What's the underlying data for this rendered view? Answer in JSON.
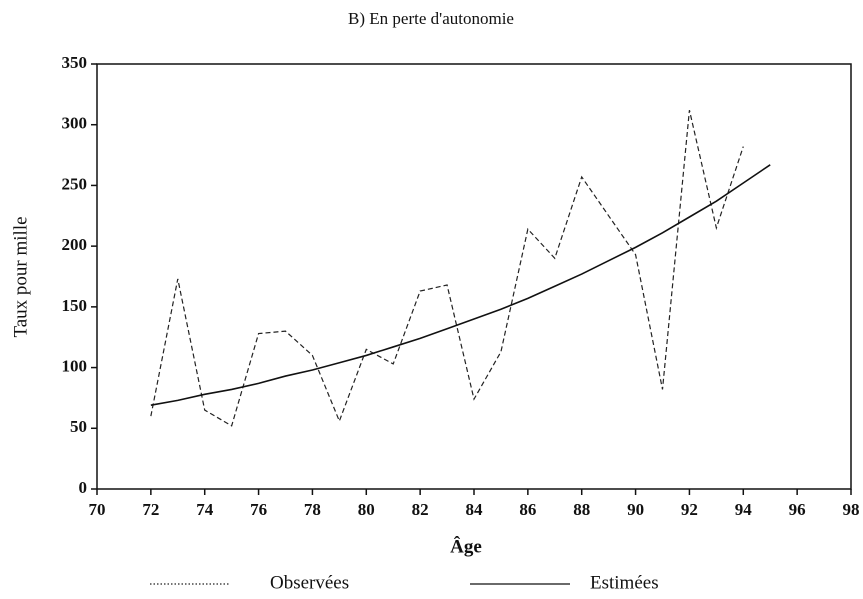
{
  "chart_data": {
    "type": "line",
    "title": "B) En perte d'autonomie",
    "xlabel": "Âge",
    "ylabel": "Taux pour mille",
    "xlim": [
      70,
      98
    ],
    "xticks": [
      70,
      72,
      74,
      76,
      78,
      80,
      82,
      84,
      86,
      88,
      90,
      92,
      94,
      96,
      98
    ],
    "ylim": [
      0,
      350
    ],
    "yticks": [
      0,
      50,
      100,
      150,
      200,
      250,
      300,
      350
    ],
    "series": [
      {
        "name": "Observées",
        "color": "#222222",
        "dash": "dashed",
        "x": [
          72,
          73,
          74,
          75,
          76,
          77,
          78,
          79,
          80,
          81,
          82,
          83,
          84,
          85,
          86,
          87,
          88,
          89,
          90,
          91,
          92,
          93,
          94
        ],
        "values": [
          60,
          173,
          65,
          52,
          128,
          130,
          110,
          56,
          115,
          103,
          163,
          168,
          74,
          113,
          214,
          190,
          257,
          225,
          193,
          82,
          312,
          215,
          282
        ]
      },
      {
        "name": "Estimées",
        "color": "#111111",
        "dash": "solid",
        "x": [
          72,
          73,
          74,
          75,
          76,
          77,
          78,
          79,
          80,
          81,
          82,
          83,
          84,
          85,
          86,
          87,
          88,
          89,
          90,
          91,
          92,
          93,
          94,
          95
        ],
        "values": [
          69,
          73,
          78,
          82,
          87,
          93,
          98,
          104,
          110,
          117,
          124,
          132,
          140,
          148,
          157,
          167,
          177,
          188,
          199,
          211,
          224,
          237,
          252,
          267
        ]
      }
    ]
  }
}
